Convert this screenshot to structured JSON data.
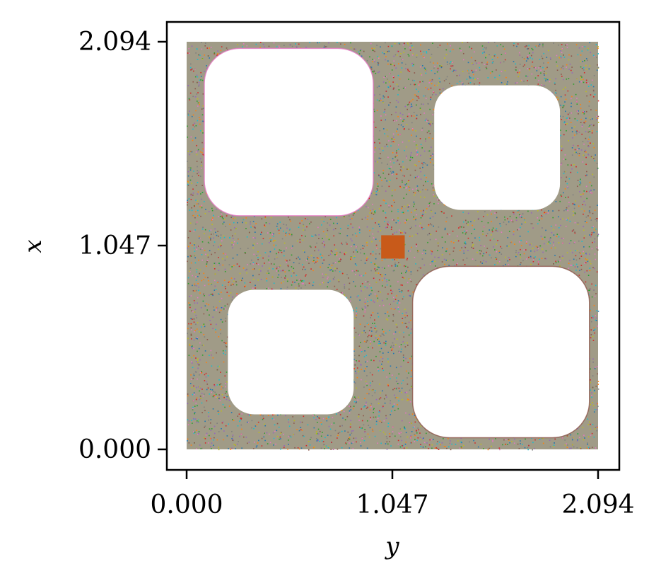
{
  "chart_data": {
    "type": "scatter",
    "title": "",
    "xlabel": "y",
    "ylabel": "x",
    "xlim": [
      -0.1,
      2.2
    ],
    "ylim": [
      -0.1,
      2.2
    ],
    "data_extent": {
      "x": [
        0.0,
        2.094
      ],
      "y": [
        0.0,
        2.094
      ]
    },
    "x_ticks": [
      0.0,
      1.047,
      2.094
    ],
    "y_ticks": [
      0.0,
      1.047,
      2.094
    ],
    "x_tick_labels": [
      "0.000",
      "1.047",
      "2.094"
    ],
    "y_tick_labels": [
      "0.000",
      "1.047",
      "2.094"
    ],
    "grid": false,
    "legend": "none",
    "point_colors": [
      "#1f77b4",
      "#ff7f0e",
      "#2ca02c",
      "#d62728",
      "#9467bd",
      "#8c564b",
      "#e377c2",
      "#7f7f7f",
      "#bcbd22",
      "#17becf"
    ],
    "highlight_region": {
      "x": [
        0.99,
        1.11
      ],
      "y": [
        0.98,
        1.1
      ],
      "color": "#c85a1a"
    },
    "islands": [
      {
        "center": [
          0.52,
          1.63
        ],
        "radii": [
          0.43,
          0.43
        ],
        "outline_color": "#e377c2"
      },
      {
        "center": [
          1.58,
          1.55
        ],
        "radii": [
          0.32,
          0.32
        ],
        "outline_color": ""
      },
      {
        "center": [
          0.53,
          0.5
        ],
        "radii": [
          0.32,
          0.32
        ],
        "outline_color": ""
      },
      {
        "center": [
          1.6,
          0.5
        ],
        "radii": [
          0.45,
          0.44
        ],
        "outline_color": "#8c564b"
      }
    ]
  }
}
